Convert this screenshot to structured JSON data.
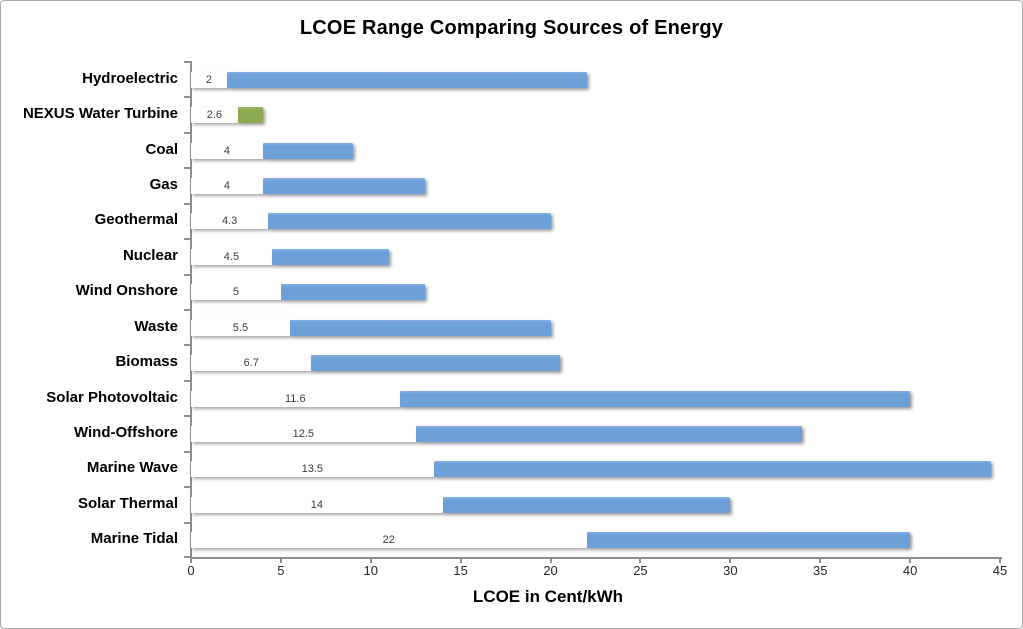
{
  "chart_data": {
    "type": "bar",
    "orientation": "horizontal-range",
    "title": "LCOE Range Comparing Sources of Energy",
    "xlabel": "LCOE in Cent/kWh",
    "xlim": [
      0,
      45
    ],
    "xticks": [
      0,
      5,
      10,
      15,
      20,
      25,
      30,
      35,
      40,
      45
    ],
    "grid": "off",
    "legend": "none",
    "bars": [
      {
        "label": "Hydroelectric",
        "min": 2,
        "max": 22,
        "min_label": "2",
        "color_key": "default"
      },
      {
        "label": "NEXUS Water Turbine",
        "min": 2.6,
        "max": 4,
        "min_label": "2.6",
        "color_key": "highlight"
      },
      {
        "label": "Coal",
        "min": 4,
        "max": 9,
        "min_label": "4",
        "color_key": "default"
      },
      {
        "label": "Gas",
        "min": 4,
        "max": 13,
        "min_label": "4",
        "color_key": "default"
      },
      {
        "label": "Geothermal",
        "min": 4.3,
        "max": 20,
        "min_label": "4.3",
        "color_key": "default"
      },
      {
        "label": "Nuclear",
        "min": 4.5,
        "max": 11,
        "min_label": "4.5",
        "color_key": "default"
      },
      {
        "label": "Wind Onshore",
        "min": 5,
        "max": 13,
        "min_label": "5",
        "color_key": "default"
      },
      {
        "label": "Waste",
        "min": 5.5,
        "max": 20,
        "min_label": "5.5",
        "color_key": "default"
      },
      {
        "label": "Biomass",
        "min": 6.7,
        "max": 20.5,
        "min_label": "6.7",
        "color_key": "default"
      },
      {
        "label": "Solar Photovoltaic",
        "min": 11.6,
        "max": 40,
        "min_label": "11.6",
        "color_key": "default"
      },
      {
        "label": "Wind-Offshore",
        "min": 12.5,
        "max": 34,
        "min_label": "12.5",
        "color_key": "default"
      },
      {
        "label": "Marine Wave",
        "min": 13.5,
        "max": 44.5,
        "min_label": "13.5",
        "color_key": "default"
      },
      {
        "label": "Solar Thermal",
        "min": 14,
        "max": 30,
        "min_label": "14",
        "color_key": "default"
      },
      {
        "label": "Marine Tidal",
        "min": 22,
        "max": 40,
        "min_label": "22",
        "color_key": "default"
      }
    ],
    "colors": {
      "bar_default": "#6D9FD8",
      "bar_highlight": "#8CA950",
      "axis": "#8E8E8E",
      "tick_label": "#262626"
    }
  }
}
